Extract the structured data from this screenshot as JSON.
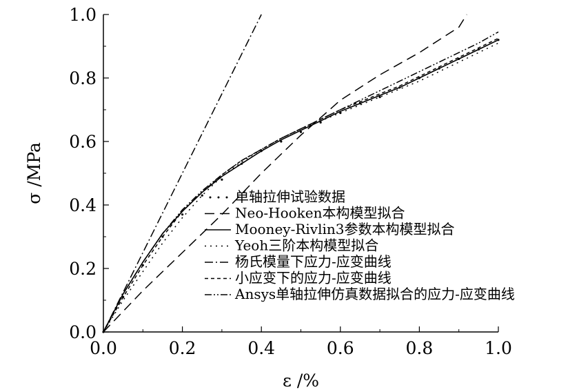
{
  "chart_data": {
    "type": "line",
    "xlabel": "ε /%",
    "ylabel": "σ /MPa",
    "xlim": [
      0.0,
      1.0
    ],
    "ylim": [
      0.0,
      1.0
    ],
    "x_ticks": [
      "0.0",
      "0.2",
      "0.4",
      "0.6",
      "0.8",
      "1.0"
    ],
    "y_ticks": [
      "0.0",
      "0.2",
      "0.4",
      "0.6",
      "0.8",
      "1.0"
    ],
    "grid": false,
    "legend_position": "bottom-right",
    "series": [
      {
        "name": "单轴拉伸试验数据",
        "style": "none",
        "x": [
          0.0,
          0.05,
          0.1,
          0.15,
          0.2,
          0.25,
          0.3,
          0.35,
          0.4,
          0.45,
          0.5,
          0.55,
          0.6,
          0.65,
          0.7,
          0.75,
          0.8,
          0.85,
          0.9,
          0.95,
          1.0
        ],
        "y": [
          0.0,
          0.11,
          0.21,
          0.3,
          0.37,
          0.43,
          0.48,
          0.53,
          0.57,
          0.6,
          0.63,
          0.66,
          0.69,
          0.72,
          0.74,
          0.77,
          0.8,
          0.83,
          0.86,
          0.89,
          0.92
        ]
      },
      {
        "name": "Neo-Hooken本构模型拟合",
        "style": "dash",
        "x": [
          0.0,
          0.1,
          0.2,
          0.3,
          0.4,
          0.5,
          0.6,
          0.7,
          0.8,
          0.9,
          0.92
        ],
        "y": [
          0.0,
          0.13,
          0.25,
          0.37,
          0.5,
          0.62,
          0.73,
          0.81,
          0.88,
          0.96,
          1.0
        ]
      },
      {
        "name": "Mooney-Rivlin3参数本构模型拟合",
        "style": "solid",
        "x": [
          0.0,
          0.05,
          0.1,
          0.15,
          0.2,
          0.25,
          0.3,
          0.35,
          0.4,
          0.45,
          0.5,
          0.55,
          0.6,
          0.65,
          0.7,
          0.75,
          0.8,
          0.85,
          0.9,
          0.95,
          1.0
        ],
        "y": [
          0.0,
          0.12,
          0.22,
          0.31,
          0.38,
          0.44,
          0.49,
          0.53,
          0.57,
          0.605,
          0.635,
          0.665,
          0.695,
          0.72,
          0.745,
          0.77,
          0.8,
          0.83,
          0.86,
          0.89,
          0.92
        ]
      },
      {
        "name": "Yeoh三阶本构模型拟合",
        "style": "dot",
        "x": [
          0.0,
          0.05,
          0.1,
          0.15,
          0.2,
          0.25,
          0.3,
          0.35,
          0.4,
          0.45,
          0.5,
          0.55,
          0.6,
          0.65,
          0.7,
          0.75,
          0.8,
          0.85,
          0.9,
          0.95,
          1.0
        ],
        "y": [
          0.0,
          0.1,
          0.19,
          0.28,
          0.36,
          0.43,
          0.49,
          0.535,
          0.575,
          0.61,
          0.64,
          0.665,
          0.69,
          0.715,
          0.74,
          0.765,
          0.79,
          0.82,
          0.85,
          0.88,
          0.91
        ]
      },
      {
        "name": "杨氏模量下应力-应变曲线",
        "style": "dashdot",
        "x": [
          0.0,
          0.4
        ],
        "y": [
          0.0,
          1.0
        ]
      },
      {
        "name": "小应变下的应力-应变曲线",
        "style": "shortdash",
        "x": [
          0.0,
          0.05,
          0.1,
          0.15,
          0.2,
          0.25,
          0.3,
          0.35,
          0.4,
          0.45,
          0.5,
          0.55,
          0.6,
          0.65,
          0.7,
          0.75,
          0.8,
          0.85,
          0.9,
          0.95,
          1.0
        ],
        "y": [
          0.0,
          0.11,
          0.21,
          0.3,
          0.38,
          0.44,
          0.495,
          0.54,
          0.575,
          0.61,
          0.64,
          0.67,
          0.7,
          0.725,
          0.75,
          0.775,
          0.805,
          0.835,
          0.865,
          0.895,
          0.925
        ]
      },
      {
        "name": "Ansys单轴拉伸仿真数据拟合的应力-应变曲线",
        "style": "dashdotdot",
        "x": [
          0.0,
          0.05,
          0.1,
          0.15,
          0.2,
          0.25,
          0.3,
          0.35,
          0.4,
          0.45,
          0.5,
          0.55,
          0.6,
          0.65,
          0.7,
          0.75,
          0.8,
          0.85,
          0.9,
          0.95,
          1.0
        ],
        "y": [
          0.0,
          0.12,
          0.22,
          0.31,
          0.385,
          0.445,
          0.495,
          0.54,
          0.575,
          0.61,
          0.64,
          0.67,
          0.7,
          0.73,
          0.76,
          0.79,
          0.82,
          0.85,
          0.88,
          0.91,
          0.945
        ]
      }
    ]
  }
}
